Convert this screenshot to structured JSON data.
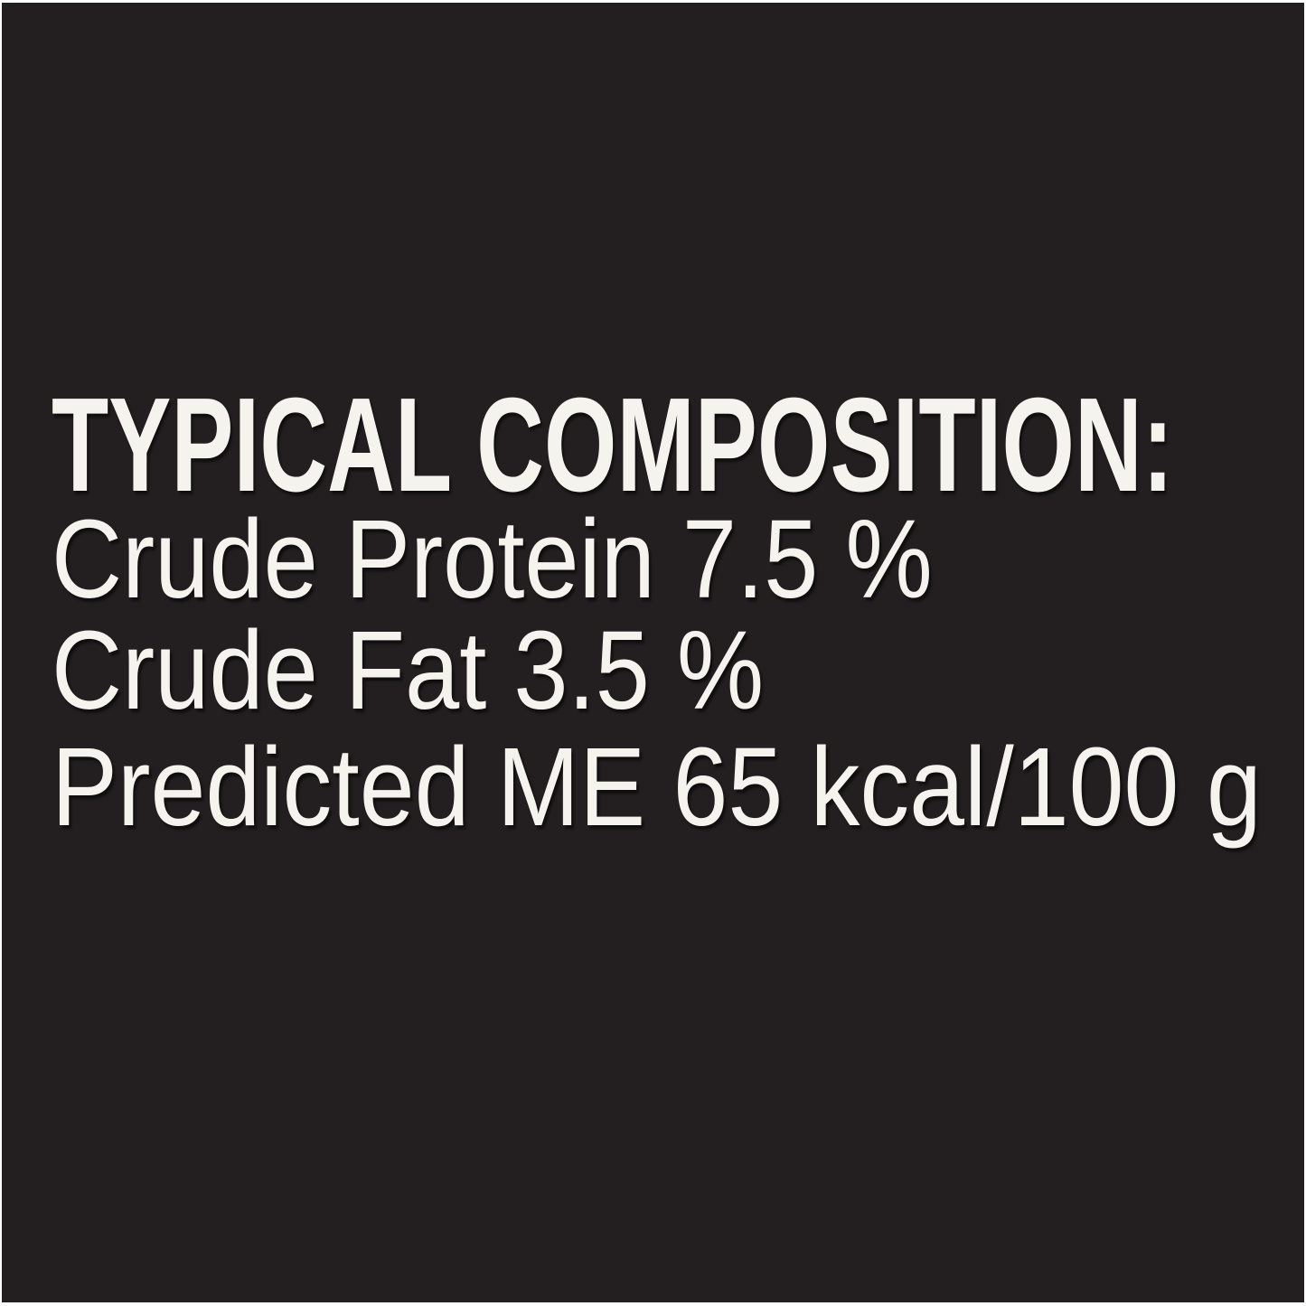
{
  "panel": {
    "title": "TYPICAL COMPOSITION:",
    "rows": [
      {
        "text": "Crude Protein 7.5 %"
      },
      {
        "text": "Crude Fat 3.5 %"
      },
      {
        "text": "Predicted ME 65 kcal/100 g"
      }
    ],
    "nutrients": [
      {
        "name": "Crude Protein",
        "value": "7.5 %"
      },
      {
        "name": "Crude Fat",
        "value": "3.5 %"
      },
      {
        "name": "Predicted ME",
        "value": "65 kcal/100 g"
      }
    ]
  },
  "colors": {
    "panel_background": "#231f20",
    "text": "#f5f3ee",
    "frame": "#ffffff"
  }
}
